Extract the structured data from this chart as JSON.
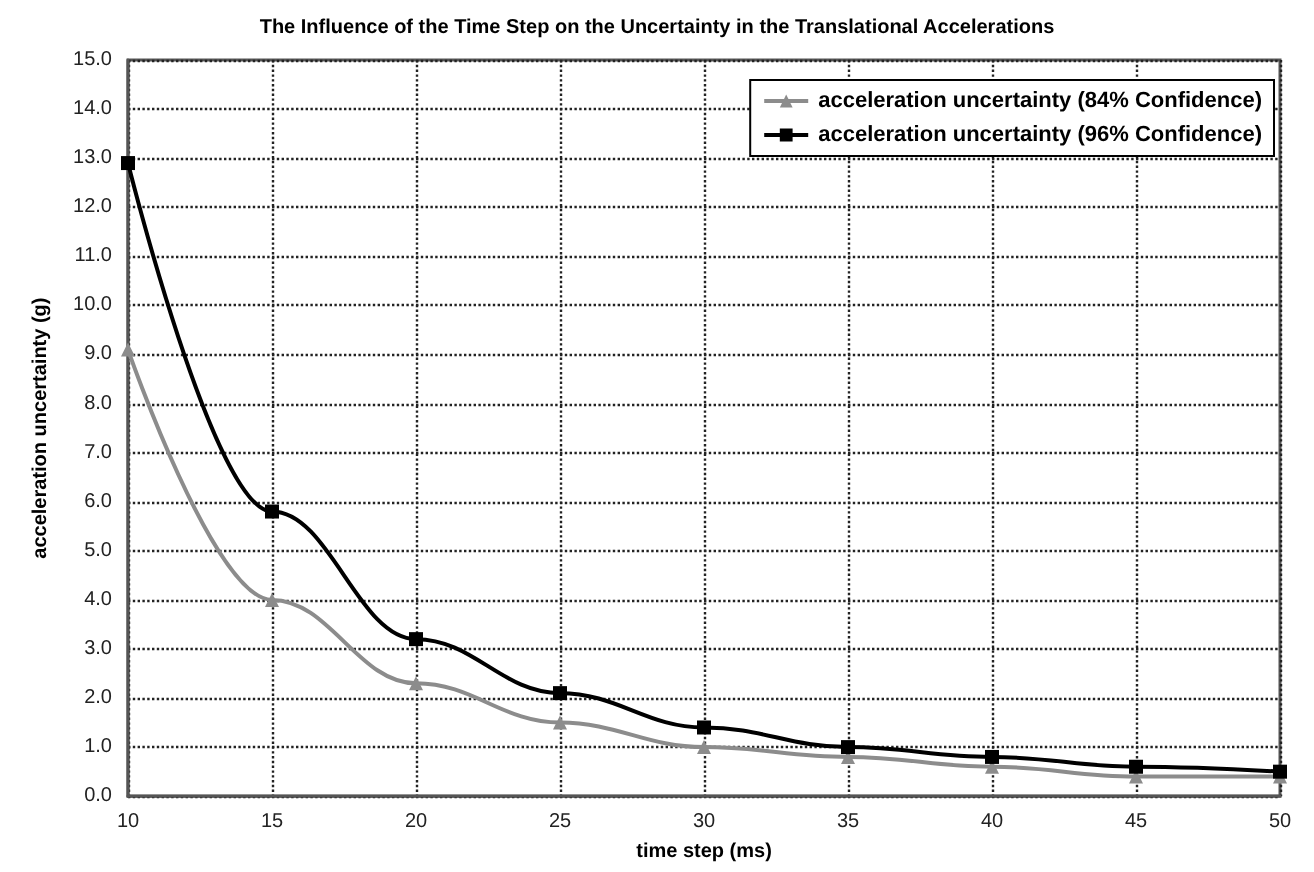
{
  "chart_data": {
    "type": "line",
    "title": "The Influence of the Time Step on the Uncertainty in the Translational Accelerations",
    "xlabel": "time step (ms)",
    "ylabel": "acceleration uncertainty (g)",
    "x": [
      10,
      15,
      20,
      25,
      30,
      35,
      40,
      45,
      50
    ],
    "series": [
      {
        "name": "acceleration uncertainty (84% Confidence)",
        "color": "#8c8c8c",
        "marker": "triangle",
        "values": [
          9.1,
          4.0,
          2.3,
          1.5,
          1.0,
          0.8,
          0.6,
          0.4,
          0.4
        ]
      },
      {
        "name": "acceleration uncertainty (96% Confidence)",
        "color": "#000000",
        "marker": "square",
        "values": [
          12.9,
          5.8,
          3.2,
          2.1,
          1.4,
          1.0,
          0.8,
          0.6,
          0.5
        ]
      }
    ],
    "xlim": [
      10,
      50
    ],
    "xticks": [
      10,
      15,
      20,
      25,
      30,
      35,
      40,
      45,
      50
    ],
    "ylim": [
      0,
      15
    ],
    "yticks": [
      {
        "value": 0,
        "label": "0.0"
      },
      {
        "value": 1,
        "label": "1.0"
      },
      {
        "value": 2,
        "label": "2.0"
      },
      {
        "value": 3,
        "label": "3.0"
      },
      {
        "value": 4,
        "label": "4.0"
      },
      {
        "value": 5,
        "label": "5.0"
      },
      {
        "value": 6,
        "label": "6.0"
      },
      {
        "value": 7,
        "label": "7.0"
      },
      {
        "value": 8,
        "label": "8.0"
      },
      {
        "value": 9,
        "label": "9.0"
      },
      {
        "value": 10,
        "label": "10.0"
      },
      {
        "value": 11,
        "label": "11.0"
      },
      {
        "value": 12,
        "label": "12.0"
      },
      {
        "value": 13,
        "label": "13.0"
      },
      {
        "value": 14,
        "label": "14.0"
      },
      {
        "value": 15,
        "label": "15.0"
      }
    ],
    "grid": true,
    "legend": "top right",
    "line_style": "solid"
  }
}
